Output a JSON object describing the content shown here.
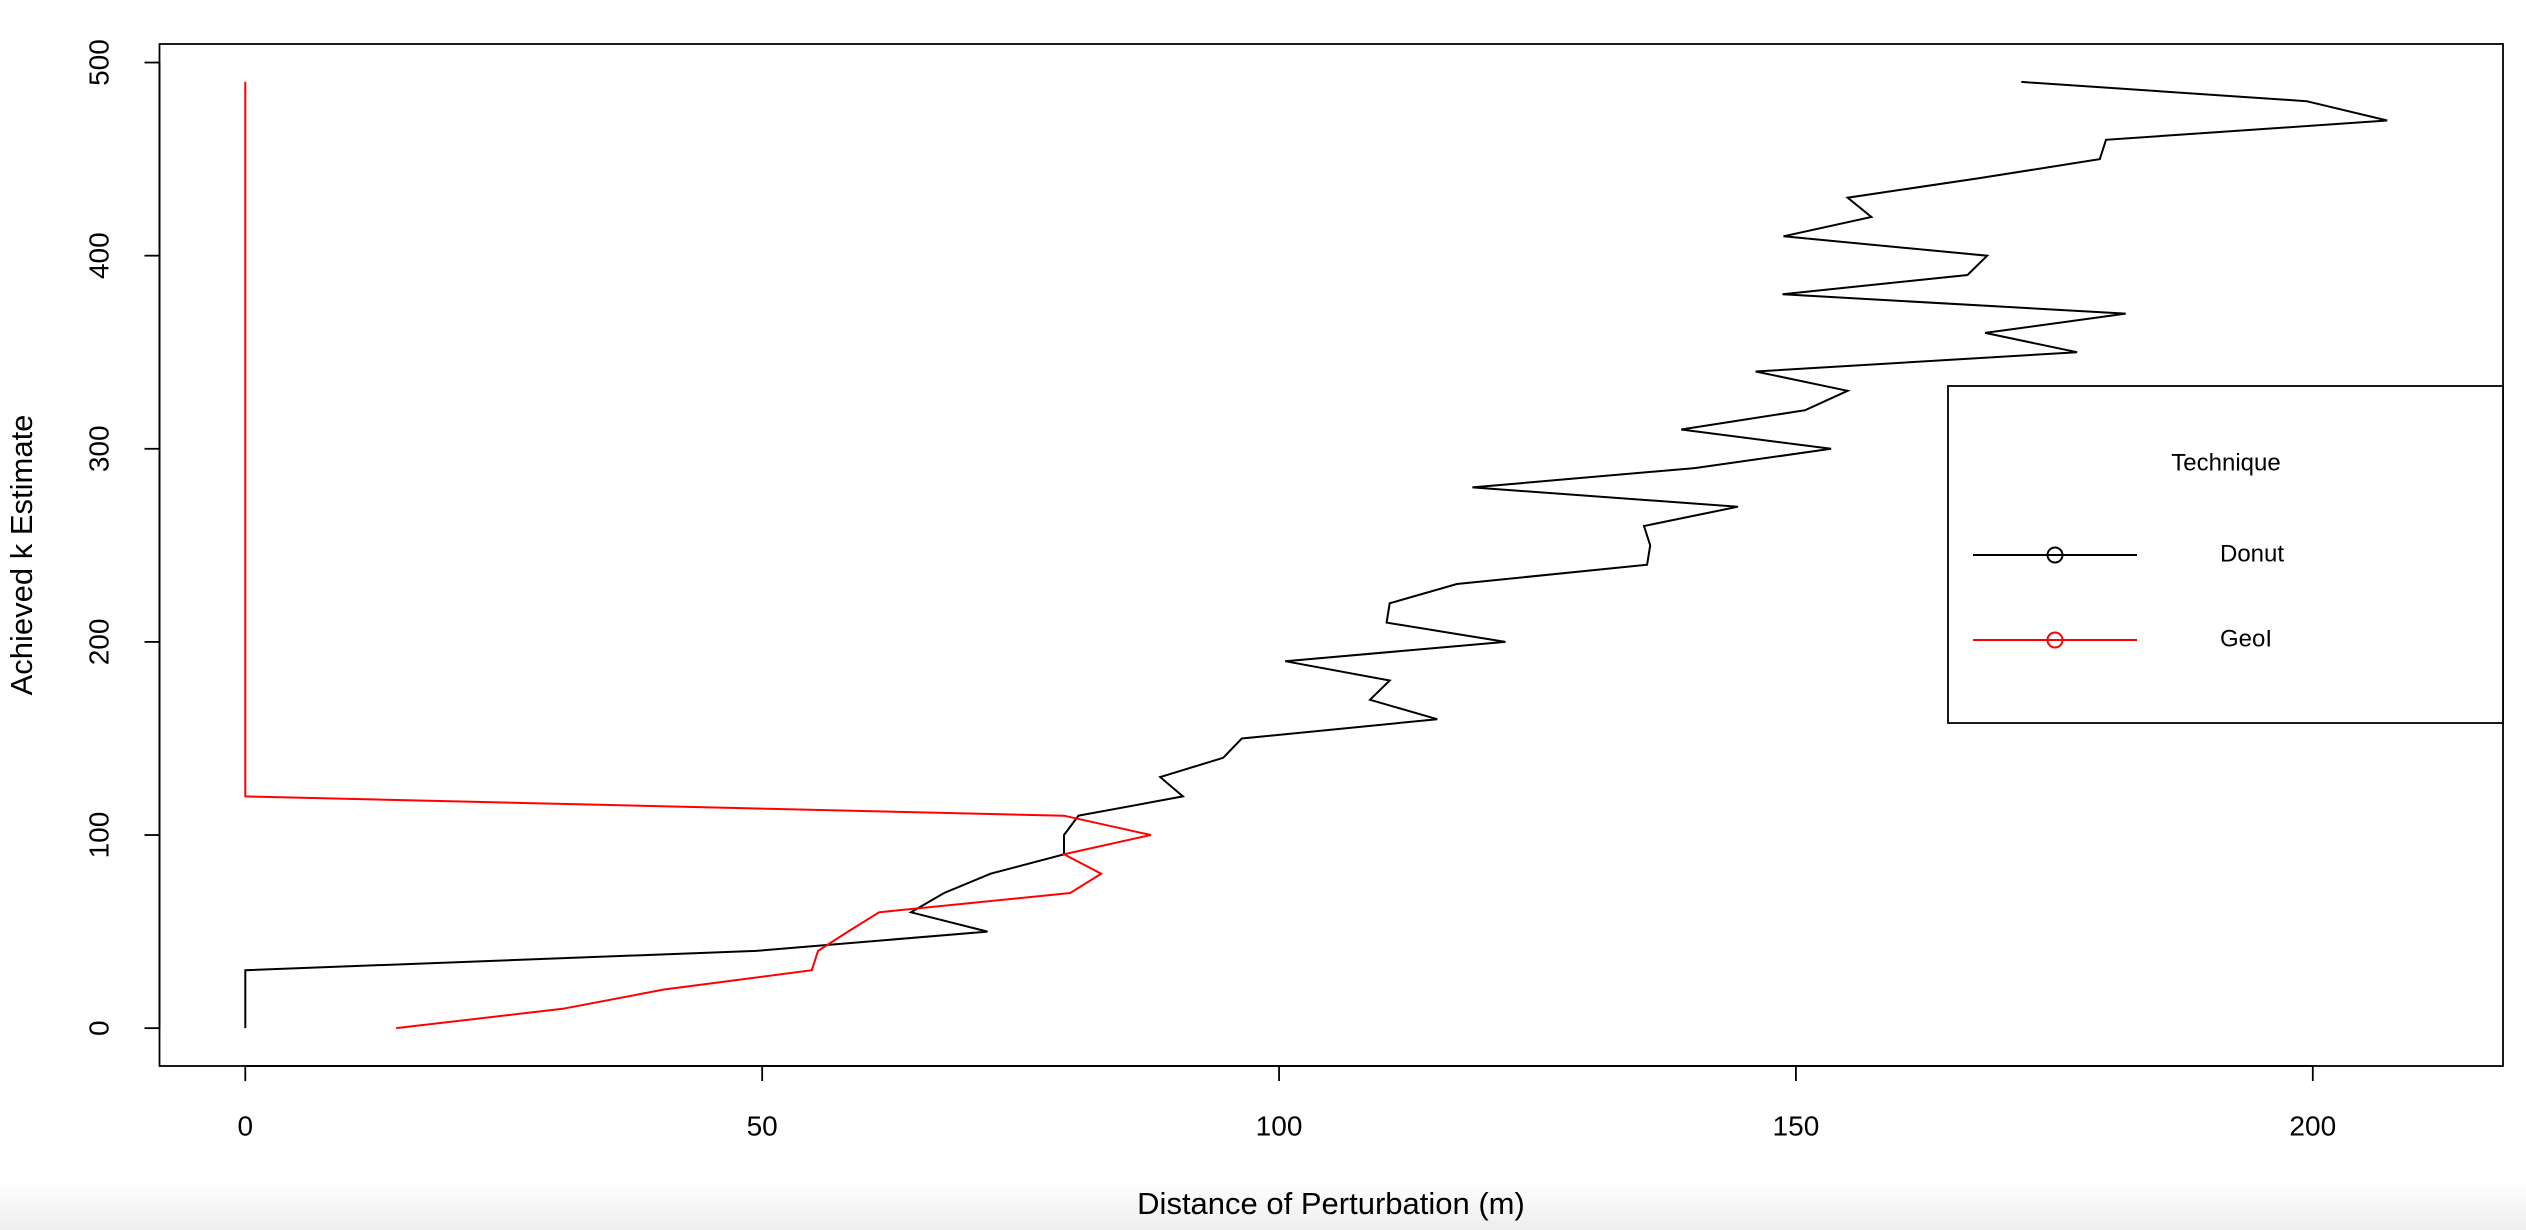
{
  "chart_data": {
    "type": "line",
    "x_label": "Distance of Perturbation (m)",
    "y_label": "Achieved k Estimate",
    "xlim": [
      -8.3,
      218.4
    ],
    "xticks": [
      0,
      50,
      100,
      150,
      200
    ],
    "ylim": [
      -19.6,
      509.6
    ],
    "yticks": [
      0,
      100,
      200,
      300,
      400,
      500
    ],
    "legend": {
      "title": "Technique",
      "position": "right"
    },
    "series": [
      {
        "name": "Donut",
        "color": "#000000",
        "x": [
          0,
          0,
          0,
          0,
          49.4,
          71.8,
          64.4,
          67.6,
          72.1,
          79.2,
          79.2,
          80.6,
          90.7,
          88.5,
          94.6,
          96.4,
          115.3,
          108.8,
          110.7,
          100.6,
          121.9,
          110.4,
          110.7,
          117.2,
          135.6,
          135.9,
          135.3,
          144.4,
          118.7,
          140.2,
          153.4,
          138.9,
          150.9,
          155.0,
          146.1,
          177.2,
          168.3,
          181.9,
          148.7,
          166.6,
          168.5,
          148.8,
          157.3,
          155.0,
          167.6,
          179.4,
          180.0,
          207.2,
          199.4,
          171.8
        ],
        "values": [
          0,
          10,
          20,
          30,
          40,
          50,
          60,
          70,
          80,
          90,
          100,
          110,
          120,
          130,
          140,
          150,
          160,
          170,
          180,
          190,
          200,
          210,
          220,
          230,
          240,
          250,
          260,
          270,
          280,
          290,
          300,
          310,
          320,
          330,
          340,
          350,
          360,
          370,
          380,
          390,
          400,
          410,
          420,
          430,
          440,
          450,
          460,
          470,
          480,
          490
        ]
      },
      {
        "name": "GeoI",
        "color": "#ff0000",
        "x": [
          14.6,
          30.7,
          40.5,
          54.8,
          55.4,
          58.3,
          61.3,
          79.8,
          82.8,
          79.2,
          87.6,
          79.2,
          0,
          0,
          0,
          0,
          0,
          0,
          0,
          0,
          0,
          0,
          0,
          0,
          0,
          0,
          0,
          0,
          0,
          0,
          0,
          0,
          0,
          0,
          0,
          0,
          0,
          0,
          0,
          0,
          0,
          0,
          0,
          0,
          0,
          0,
          0,
          0,
          0,
          0
        ],
        "values": [
          0,
          10,
          20,
          30,
          40,
          50,
          60,
          70,
          80,
          90,
          100,
          110,
          120,
          130,
          140,
          150,
          160,
          170,
          180,
          190,
          200,
          210,
          220,
          230,
          240,
          250,
          260,
          270,
          280,
          290,
          300,
          310,
          320,
          330,
          340,
          350,
          360,
          370,
          380,
          390,
          400,
          410,
          420,
          430,
          440,
          450,
          460,
          470,
          480,
          490
        ]
      }
    ]
  }
}
